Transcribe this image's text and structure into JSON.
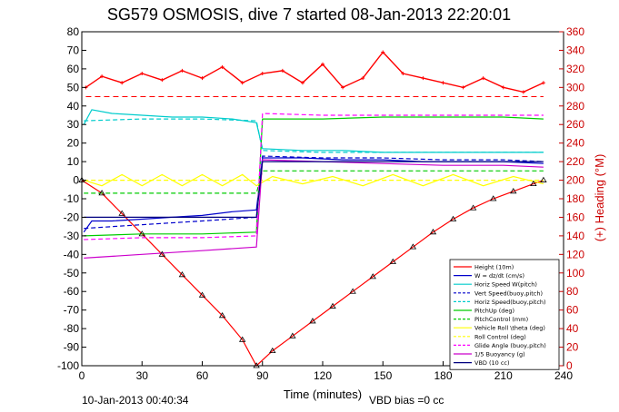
{
  "chart_data": {
    "type": "line",
    "title": "SG579 OSMOSIS, dive 7 started 08-Jan-2013 22:20:01",
    "xlabel": "Time (minutes)",
    "ylabel_right": "(+) Heading (°M)",
    "footer_left": "10-Jan-2013 00:40:34",
    "footer_right": "VBD bias =0 cc",
    "xlim": [
      0,
      240
    ],
    "ylim": [
      -100,
      80
    ],
    "ylim_right": [
      0,
      360
    ],
    "xticks": [
      "0",
      "30",
      "60",
      "90",
      "120",
      "150",
      "180",
      "210",
      "240"
    ],
    "yticks_left": [
      "80",
      "70",
      "60",
      "50",
      "40",
      "30",
      "20",
      "10",
      "0",
      "-10",
      "-20",
      "-30",
      "-40",
      "-50",
      "-60",
      "-70",
      "-80",
      "-90",
      "-100"
    ],
    "yticks_right": [
      "360",
      "340",
      "320",
      "300",
      "280",
      "260",
      "240",
      "220",
      "200",
      "180",
      "160",
      "140",
      "120",
      "100",
      "80",
      "60",
      "40",
      "20",
      "0"
    ],
    "legend_position": "bottom-right",
    "series": [
      {
        "name": "Height (10m)",
        "color": "#ff0000",
        "style": "solid",
        "x": [
          0,
          10,
          20,
          30,
          40,
          50,
          60,
          70,
          80,
          87,
          95,
          105,
          115,
          125,
          135,
          145,
          155,
          165,
          175,
          185,
          195,
          205,
          215,
          225,
          230
        ],
        "y": [
          0,
          -7,
          -18,
          -29,
          -40,
          -51,
          -62,
          -73,
          -86,
          -100,
          -92,
          -84,
          -76,
          -68,
          -60,
          -52,
          -44,
          -36,
          -28,
          -21,
          -15,
          -10,
          -6,
          -2,
          0
        ]
      },
      {
        "name": "W = dz/dt (cm/s)",
        "color": "#0000cc",
        "style": "solid",
        "x": [
          1,
          5,
          15,
          30,
          45,
          60,
          75,
          87,
          90,
          110,
          130,
          150,
          170,
          190,
          210,
          230
        ],
        "y": [
          -28,
          -22,
          -22,
          -21,
          -20,
          -19,
          -17,
          -16,
          12,
          12,
          11,
          11,
          10,
          10,
          10,
          9
        ]
      },
      {
        "name": "Horiz Speed W(pitch)",
        "color": "#00cccc",
        "style": "solid",
        "x": [
          1,
          5,
          15,
          30,
          45,
          60,
          75,
          87,
          90,
          110,
          130,
          150,
          170,
          190,
          210,
          230
        ],
        "y": [
          30,
          38,
          36,
          35,
          34,
          34,
          33,
          31,
          17,
          16,
          16,
          15,
          15,
          15,
          15,
          15
        ]
      },
      {
        "name": "Vert Speed(buoy,pitch)",
        "color": "#0000cc",
        "style": "dashed",
        "x": [
          1,
          30,
          60,
          87,
          90,
          120,
          150,
          180,
          210,
          230
        ],
        "y": [
          -26,
          -24,
          -22,
          -20,
          13,
          12,
          12,
          11,
          11,
          10
        ]
      },
      {
        "name": "Horiz Speed(buoy,pitch)",
        "color": "#00cccc",
        "style": "dashed",
        "x": [
          1,
          30,
          60,
          87,
          90,
          120,
          150,
          180,
          210,
          230
        ],
        "y": [
          32,
          33,
          33,
          32,
          16,
          15,
          15,
          15,
          15,
          15
        ]
      },
      {
        "name": "PitchUp (deg)",
        "color": "#00cc00",
        "style": "solid",
        "x": [
          1,
          30,
          60,
          87,
          90,
          120,
          150,
          180,
          210,
          230
        ],
        "y": [
          -30,
          -29,
          -29,
          -28,
          33,
          33,
          34,
          34,
          34,
          33
        ]
      },
      {
        "name": "PitchControl (mm)",
        "color": "#00cc00",
        "style": "dashed",
        "x": [
          1,
          87,
          90,
          230
        ],
        "y": [
          -7,
          -7,
          5,
          5
        ]
      },
      {
        "name": "Vehicle Roll \\theta (deg)",
        "color": "#ffff00",
        "style": "solid",
        "x": [
          1,
          10,
          20,
          30,
          40,
          50,
          60,
          70,
          80,
          87,
          95,
          110,
          125,
          140,
          155,
          170,
          185,
          200,
          215,
          230
        ],
        "y": [
          0,
          -3,
          3,
          -3,
          3,
          -3,
          3,
          -3,
          3,
          -3,
          2,
          -2,
          2,
          -3,
          3,
          -3,
          3,
          -3,
          2,
          -2
        ]
      },
      {
        "name": "Roll Control (deg)",
        "color": "#ffff00",
        "style": "dashed",
        "x": [
          1,
          87,
          90,
          230
        ],
        "y": [
          0,
          0,
          0,
          0
        ]
      },
      {
        "name": "Glide Angle (buoy,pitch)",
        "color": "#ff00ff",
        "style": "dashed",
        "x": [
          1,
          30,
          60,
          87,
          90,
          120,
          150,
          180,
          210,
          230
        ],
        "y": [
          -32,
          -31,
          -31,
          -30,
          36,
          35,
          35,
          35,
          35,
          35
        ]
      },
      {
        "name": "1/5 Buoyancy (g)",
        "color": "#cc00cc",
        "style": "solid",
        "x": [
          1,
          30,
          60,
          87,
          90,
          120,
          150,
          180,
          210,
          230
        ],
        "y": [
          -42,
          -40,
          -38,
          -36,
          11,
          10,
          9,
          8,
          8,
          7
        ]
      },
      {
        "name": "VBD (10 cc)",
        "color": "#000080",
        "style": "solid",
        "x": [
          1,
          87,
          90,
          230
        ],
        "y": [
          -20,
          -20,
          10,
          10
        ]
      }
    ],
    "heading": {
      "name": "(+) Heading (°M)",
      "color": "#ff0000",
      "axis": "right",
      "marker": "+",
      "x": [
        2,
        10,
        20,
        30,
        40,
        50,
        60,
        70,
        80,
        90,
        100,
        110,
        120,
        130,
        140,
        150,
        160,
        170,
        180,
        190,
        200,
        210,
        220,
        230
      ],
      "y": [
        300,
        312,
        305,
        315,
        308,
        318,
        310,
        322,
        305,
        315,
        318,
        305,
        325,
        300,
        310,
        338,
        315,
        310,
        305,
        300,
        310,
        300,
        295,
        305
      ]
    },
    "heading_target": {
      "color": "#ff0000",
      "axis": "right",
      "style": "dashed",
      "value": 290
    }
  }
}
